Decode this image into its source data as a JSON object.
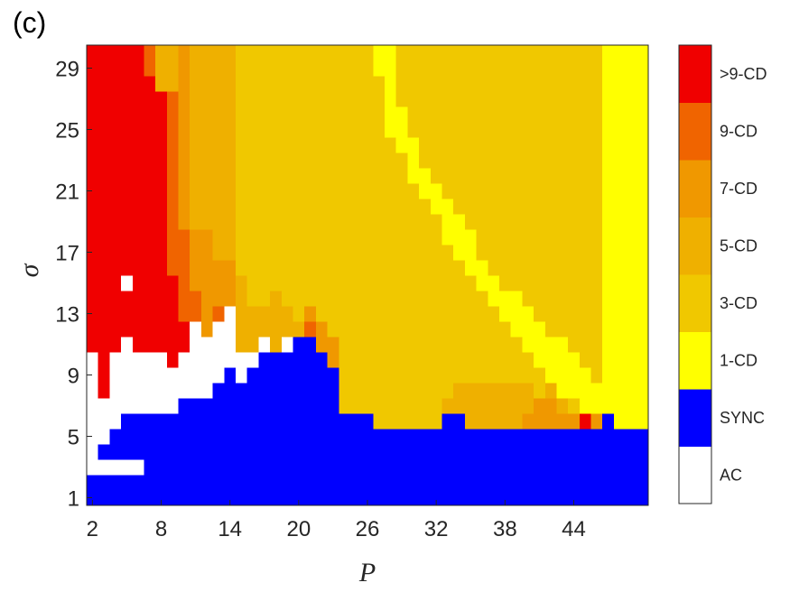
{
  "panel_label": "(c)",
  "colors": [
    "#ffffff",
    "#0000ff",
    "#ffff00",
    "#f0c800",
    "#efb000",
    "#f09800",
    "#f06400",
    "#f00000"
  ],
  "chart_data": {
    "type": "heatmap",
    "xlabel": "P",
    "ylabel": "σ",
    "x_range": [
      2,
      50
    ],
    "y_range": [
      1,
      31
    ],
    "xticks": [
      2,
      8,
      14,
      20,
      26,
      32,
      38,
      44
    ],
    "yticks": [
      1,
      5,
      9,
      13,
      17,
      21,
      25,
      29
    ],
    "colorbar": {
      "labels": [
        "AC",
        "SYNC",
        "1-CD",
        "3-CD",
        "5-CD",
        "7-CD",
        "9-CD",
        ">9-CD"
      ],
      "class_index_meaning": "0=AC, 1=SYNC, 2=1-CD, 3=3-CD, 4=5-CD, 5=7-CD, 6=9-CD, 7=>9-CD"
    },
    "columns": [
      {
        "p": 2,
        "r": [
          [
            1,
            3,
            1
          ],
          [
            3,
            4,
            0
          ],
          [
            4,
            8,
            0
          ],
          [
            8,
            9,
            0
          ],
          [
            9,
            11,
            0
          ],
          [
            11,
            31,
            7
          ]
        ]
      },
      {
        "p": 3,
        "r": [
          [
            1,
            3,
            1
          ],
          [
            3,
            4,
            0
          ],
          [
            4,
            5,
            1
          ],
          [
            5,
            6,
            0
          ],
          [
            6,
            8,
            0
          ],
          [
            8,
            31,
            7
          ]
        ]
      },
      {
        "p": 4,
        "r": [
          [
            1,
            3,
            1
          ],
          [
            3,
            4,
            0
          ],
          [
            4,
            6,
            1
          ],
          [
            6,
            11,
            0
          ],
          [
            11,
            31,
            7
          ]
        ]
      },
      {
        "p": 5,
        "r": [
          [
            1,
            3,
            1
          ],
          [
            3,
            4,
            0
          ],
          [
            4,
            7,
            1
          ],
          [
            7,
            12,
            0
          ],
          [
            12,
            15,
            7
          ],
          [
            15,
            16,
            0
          ],
          [
            16,
            31,
            7
          ]
        ]
      },
      {
        "p": 6,
        "r": [
          [
            1,
            3,
            1
          ],
          [
            3,
            4,
            0
          ],
          [
            4,
            7,
            1
          ],
          [
            7,
            11,
            0
          ],
          [
            11,
            13,
            7
          ],
          [
            13,
            31,
            7
          ]
        ]
      },
      {
        "p": 7,
        "r": [
          [
            1,
            7,
            1
          ],
          [
            7,
            11,
            0
          ],
          [
            11,
            29,
            7
          ],
          [
            29,
            31,
            6
          ]
        ]
      },
      {
        "p": 8,
        "r": [
          [
            1,
            7,
            1
          ],
          [
            7,
            11,
            0
          ],
          [
            11,
            28,
            7
          ],
          [
            28,
            31,
            4
          ]
        ]
      },
      {
        "p": 9,
        "r": [
          [
            1,
            7,
            1
          ],
          [
            7,
            10,
            0
          ],
          [
            10,
            12,
            7
          ],
          [
            12,
            16,
            7
          ],
          [
            16,
            24,
            6
          ],
          [
            24,
            28,
            6
          ],
          [
            28,
            31,
            4
          ]
        ]
      },
      {
        "p": 10,
        "r": [
          [
            1,
            8,
            1
          ],
          [
            8,
            11,
            0
          ],
          [
            11,
            13,
            7
          ],
          [
            13,
            16,
            6
          ],
          [
            16,
            19,
            6
          ],
          [
            19,
            31,
            5
          ]
        ]
      },
      {
        "p": 11,
        "r": [
          [
            1,
            8,
            1
          ],
          [
            8,
            11,
            0
          ],
          [
            11,
            13,
            0
          ],
          [
            13,
            15,
            6
          ],
          [
            15,
            19,
            5
          ],
          [
            19,
            31,
            4
          ]
        ]
      },
      {
        "p": 12,
        "r": [
          [
            1,
            8,
            1
          ],
          [
            8,
            10,
            0
          ],
          [
            10,
            12,
            0
          ],
          [
            12,
            14,
            5
          ],
          [
            14,
            19,
            5
          ],
          [
            19,
            31,
            4
          ]
        ]
      },
      {
        "p": 13,
        "r": [
          [
            1,
            8,
            1
          ],
          [
            8,
            9,
            1
          ],
          [
            9,
            10,
            0
          ],
          [
            10,
            13,
            0
          ],
          [
            13,
            14,
            6
          ],
          [
            14,
            17,
            5
          ],
          [
            17,
            24,
            4
          ],
          [
            24,
            31,
            4
          ]
        ]
      },
      {
        "p": 14,
        "r": [
          [
            1,
            8,
            1
          ],
          [
            8,
            10,
            1
          ],
          [
            10,
            13,
            0
          ],
          [
            13,
            14,
            0
          ],
          [
            14,
            17,
            5
          ],
          [
            17,
            20,
            4
          ],
          [
            20,
            31,
            4
          ]
        ]
      },
      {
        "p": 15,
        "r": [
          [
            1,
            8,
            1
          ],
          [
            8,
            9,
            1
          ],
          [
            9,
            11,
            0
          ],
          [
            11,
            16,
            4
          ],
          [
            16,
            31,
            3
          ]
        ]
      },
      {
        "p": 16,
        "r": [
          [
            1,
            9,
            1
          ],
          [
            9,
            10,
            1
          ],
          [
            10,
            11,
            0
          ],
          [
            11,
            14,
            4
          ],
          [
            14,
            31,
            3
          ]
        ]
      },
      {
        "p": 17,
        "r": [
          [
            1,
            9,
            1
          ],
          [
            9,
            11,
            1
          ],
          [
            11,
            12,
            0
          ],
          [
            12,
            14,
            4
          ],
          [
            14,
            31,
            3
          ]
        ]
      },
      {
        "p": 18,
        "r": [
          [
            1,
            9,
            1
          ],
          [
            9,
            11,
            1
          ],
          [
            11,
            15,
            4
          ],
          [
            15,
            31,
            3
          ]
        ]
      },
      {
        "p": 19,
        "r": [
          [
            1,
            9,
            1
          ],
          [
            9,
            11,
            1
          ],
          [
            11,
            12,
            0
          ],
          [
            12,
            14,
            4
          ],
          [
            14,
            31,
            3
          ]
        ]
      },
      {
        "p": 20,
        "r": [
          [
            1,
            9,
            1
          ],
          [
            9,
            12,
            1
          ],
          [
            12,
            13,
            4
          ],
          [
            13,
            31,
            3
          ]
        ]
      },
      {
        "p": 21,
        "r": [
          [
            1,
            9,
            1
          ],
          [
            9,
            12,
            1
          ],
          [
            12,
            13,
            6
          ],
          [
            13,
            14,
            5
          ],
          [
            14,
            31,
            3
          ]
        ]
      },
      {
        "p": 22,
        "r": [
          [
            1,
            9,
            1
          ],
          [
            9,
            11,
            1
          ],
          [
            11,
            13,
            5
          ],
          [
            13,
            31,
            3
          ]
        ]
      },
      {
        "p": 23,
        "r": [
          [
            1,
            8,
            1
          ],
          [
            8,
            10,
            1
          ],
          [
            10,
            12,
            5
          ],
          [
            12,
            31,
            3
          ]
        ]
      },
      {
        "p": 24,
        "r": [
          [
            1,
            7,
            1
          ],
          [
            7,
            31,
            3
          ]
        ]
      },
      {
        "p": 25,
        "r": [
          [
            1,
            7,
            1
          ],
          [
            7,
            31,
            3
          ]
        ]
      },
      {
        "p": 26,
        "r": [
          [
            1,
            7,
            1
          ],
          [
            7,
            31,
            3
          ]
        ]
      },
      {
        "p": 27,
        "r": [
          [
            1,
            6,
            1
          ],
          [
            6,
            29,
            3
          ],
          [
            29,
            31,
            2
          ]
        ]
      },
      {
        "p": 28,
        "r": [
          [
            1,
            6,
            1
          ],
          [
            6,
            25,
            3
          ],
          [
            25,
            31,
            2
          ]
        ]
      },
      {
        "p": 29,
        "r": [
          [
            1,
            6,
            1
          ],
          [
            6,
            24,
            3
          ],
          [
            24,
            27,
            2
          ],
          [
            27,
            31,
            3
          ]
        ]
      },
      {
        "p": 30,
        "r": [
          [
            1,
            6,
            1
          ],
          [
            6,
            22,
            3
          ],
          [
            22,
            25,
            2
          ],
          [
            25,
            31,
            3
          ]
        ]
      },
      {
        "p": 31,
        "r": [
          [
            1,
            6,
            1
          ],
          [
            6,
            21,
            3
          ],
          [
            21,
            23,
            2
          ],
          [
            23,
            31,
            3
          ]
        ]
      },
      {
        "p": 32,
        "r": [
          [
            1,
            6,
            1
          ],
          [
            6,
            20,
            3
          ],
          [
            20,
            22,
            2
          ],
          [
            22,
            31,
            3
          ]
        ]
      },
      {
        "p": 33,
        "r": [
          [
            1,
            7,
            1
          ],
          [
            7,
            8,
            4
          ],
          [
            8,
            18,
            3
          ],
          [
            18,
            21,
            2
          ],
          [
            21,
            31,
            3
          ]
        ]
      },
      {
        "p": 34,
        "r": [
          [
            1,
            7,
            1
          ],
          [
            7,
            9,
            4
          ],
          [
            9,
            17,
            3
          ],
          [
            17,
            20,
            2
          ],
          [
            20,
            31,
            3
          ]
        ]
      },
      {
        "p": 35,
        "r": [
          [
            1,
            6,
            1
          ],
          [
            6,
            9,
            4
          ],
          [
            9,
            16,
            3
          ],
          [
            16,
            19,
            2
          ],
          [
            19,
            31,
            3
          ]
        ]
      },
      {
        "p": 36,
        "r": [
          [
            1,
            6,
            1
          ],
          [
            6,
            9,
            4
          ],
          [
            9,
            15,
            3
          ],
          [
            15,
            17,
            2
          ],
          [
            17,
            31,
            3
          ]
        ]
      },
      {
        "p": 37,
        "r": [
          [
            1,
            6,
            1
          ],
          [
            6,
            9,
            4
          ],
          [
            9,
            14,
            3
          ],
          [
            14,
            16,
            2
          ],
          [
            16,
            31,
            3
          ]
        ]
      },
      {
        "p": 38,
        "r": [
          [
            1,
            6,
            1
          ],
          [
            6,
            9,
            4
          ],
          [
            9,
            13,
            3
          ],
          [
            13,
            15,
            2
          ],
          [
            15,
            31,
            3
          ]
        ]
      },
      {
        "p": 39,
        "r": [
          [
            1,
            6,
            1
          ],
          [
            6,
            9,
            4
          ],
          [
            9,
            12,
            3
          ],
          [
            12,
            15,
            2
          ],
          [
            15,
            31,
            3
          ]
        ]
      },
      {
        "p": 40,
        "r": [
          [
            1,
            6,
            1
          ],
          [
            6,
            7,
            5
          ],
          [
            7,
            9,
            4
          ],
          [
            9,
            11,
            3
          ],
          [
            11,
            14,
            2
          ],
          [
            14,
            31,
            3
          ]
        ]
      },
      {
        "p": 41,
        "r": [
          [
            1,
            6,
            1
          ],
          [
            6,
            8,
            5
          ],
          [
            8,
            10,
            3
          ],
          [
            10,
            13,
            2
          ],
          [
            13,
            31,
            3
          ]
        ]
      },
      {
        "p": 42,
        "r": [
          [
            1,
            6,
            1
          ],
          [
            6,
            8,
            5
          ],
          [
            8,
            9,
            4
          ],
          [
            9,
            12,
            2
          ],
          [
            12,
            31,
            3
          ]
        ]
      },
      {
        "p": 43,
        "r": [
          [
            1,
            6,
            1
          ],
          [
            6,
            7,
            5
          ],
          [
            7,
            8,
            4
          ],
          [
            8,
            12,
            2
          ],
          [
            12,
            31,
            3
          ]
        ]
      },
      {
        "p": 44,
        "r": [
          [
            1,
            6,
            1
          ],
          [
            6,
            7,
            5
          ],
          [
            7,
            8,
            3
          ],
          [
            8,
            11,
            2
          ],
          [
            11,
            31,
            3
          ]
        ]
      },
      {
        "p": 45,
        "r": [
          [
            1,
            6,
            1
          ],
          [
            6,
            7,
            7
          ],
          [
            7,
            10,
            2
          ],
          [
            10,
            31,
            3
          ]
        ]
      },
      {
        "p": 46,
        "r": [
          [
            1,
            6,
            1
          ],
          [
            6,
            7,
            5
          ],
          [
            7,
            9,
            2
          ],
          [
            9,
            31,
            3
          ]
        ]
      },
      {
        "p": 47,
        "r": [
          [
            1,
            6,
            1
          ],
          [
            6,
            7,
            1
          ],
          [
            7,
            8,
            2
          ],
          [
            8,
            31,
            2
          ]
        ]
      },
      {
        "p": 48,
        "r": [
          [
            1,
            6,
            1
          ],
          [
            6,
            8,
            2
          ],
          [
            8,
            31,
            2
          ]
        ]
      },
      {
        "p": 49,
        "r": [
          [
            1,
            6,
            1
          ],
          [
            6,
            31,
            2
          ]
        ]
      },
      {
        "p": 50,
        "r": [
          [
            1,
            6,
            1
          ],
          [
            6,
            31,
            2
          ]
        ]
      }
    ]
  }
}
